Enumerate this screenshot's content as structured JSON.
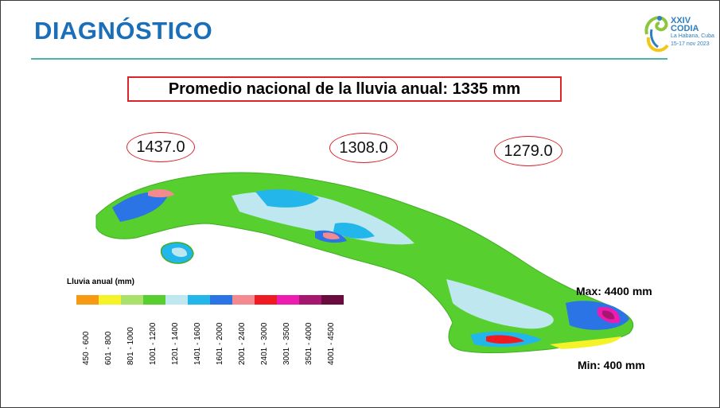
{
  "header": {
    "title": "DIAGNÓSTICO"
  },
  "logo": {
    "line1": "XXIV",
    "line2": "CODIA",
    "line3": "La Habana, Cuba",
    "line4": "15-17 nov 2023"
  },
  "headline": "Promedio nacional de la lluvia anual: 1335 mm",
  "regions": [
    {
      "value": "1437.0"
    },
    {
      "value": "1308.0"
    },
    {
      "value": "1279.0"
    }
  ],
  "legend": {
    "title": "Lluvia anual (mm)",
    "classes": [
      {
        "label": "450 - 600",
        "color": "#f59a12"
      },
      {
        "label": "601 - 800",
        "color": "#f6f22a"
      },
      {
        "label": "801 - 1000",
        "color": "#a8e26a"
      },
      {
        "label": "1001 - 1200",
        "color": "#57cf2f"
      },
      {
        "label": "1201 - 1400",
        "color": "#bfe7f0"
      },
      {
        "label": "1401 - 1600",
        "color": "#22b6ea"
      },
      {
        "label": "1601 - 2000",
        "color": "#2a74e6"
      },
      {
        "label": "2001 - 2400",
        "color": "#f28a8f"
      },
      {
        "label": "2401 - 3000",
        "color": "#ee1b22"
      },
      {
        "label": "3001 - 3500",
        "color": "#ec1cb0"
      },
      {
        "label": "3501 - 4000",
        "color": "#a6186f"
      },
      {
        "label": "4001 - 4500",
        "color": "#6a0d3e"
      }
    ]
  },
  "extremes": {
    "max": "Max: 4400 mm",
    "min": "Min: 400 mm"
  },
  "colors": {
    "title": "#1a6fb8",
    "accent_rule": "#4fb3a5",
    "box_red": "#d9252b"
  }
}
